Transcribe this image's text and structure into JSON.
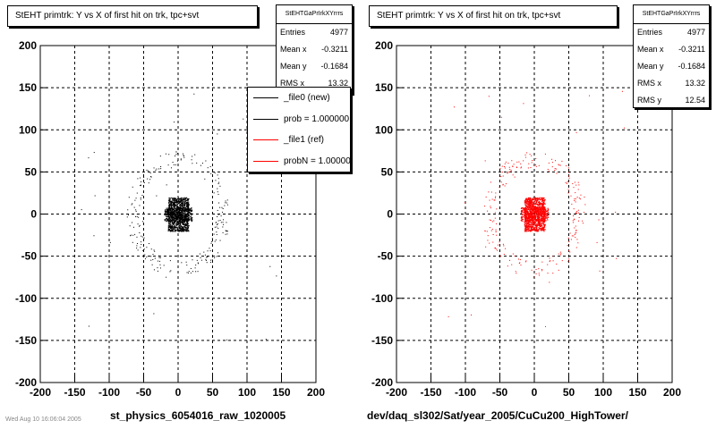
{
  "chart_data": [
    {
      "type": "scatter",
      "title": "StEHT primtrk: Y vs X of first hit on trk, tpc+svt",
      "xlim": [
        -200,
        200
      ],
      "ylim": [
        -200,
        200
      ],
      "xticks": [
        -200,
        -150,
        -100,
        -50,
        0,
        50,
        100,
        150,
        200
      ],
      "yticks": [
        -200,
        -150,
        -100,
        -50,
        0,
        50,
        100,
        150,
        200
      ],
      "grid": true,
      "xlabel": "st_physics_6054016_raw_1020005",
      "marker_color": "#000000",
      "stats": {
        "title": "StEHTGaPrIrkXYrrrs",
        "entries": [
          {
            "label": "Entries",
            "value": "4977"
          },
          {
            "label": "Mean x",
            "value": "-0.3211"
          },
          {
            "label": "Mean y",
            "value": "-0.1684"
          },
          {
            "label": "RMS x",
            "value": "13.32"
          }
        ]
      },
      "legend": {
        "placement": "top-right",
        "entries": [
          {
            "label": "_file0 (new)",
            "color": "#000000"
          },
          {
            "label": "prob = 1.000000",
            "color": "#000000"
          },
          {
            "label": "_file1 (ref)",
            "color": "#ff0000"
          },
          {
            "label": "probN = 1.000000",
            "color": "#ff0000"
          }
        ]
      },
      "core": {
        "center": [
          0,
          0
        ],
        "halfwidth": 15,
        "halfheight": 20
      },
      "ring": {
        "center": [
          0,
          0
        ],
        "radius_min": 55,
        "radius_max": 75
      }
    },
    {
      "type": "scatter",
      "title": "StEHT primtrk: Y vs X of first hit on trk, tpc+svt",
      "xlim": [
        -200,
        200
      ],
      "ylim": [
        -200,
        200
      ],
      "xticks": [
        -200,
        -150,
        -100,
        -50,
        0,
        50,
        100,
        150,
        200
      ],
      "yticks": [
        -200,
        -150,
        -100,
        -50,
        0,
        50,
        100,
        150,
        200
      ],
      "grid": true,
      "xlabel": "dev/daq_sl302/Sat/year_2005/CuCu200_HighTower/",
      "marker_color": "#ff0000",
      "stats": {
        "title": "StEHTGaPrIrkXYrrrs",
        "entries": [
          {
            "label": "Entries",
            "value": "4977"
          },
          {
            "label": "Mean x",
            "value": "-0.3211"
          },
          {
            "label": "Mean y",
            "value": "-0.1684"
          },
          {
            "label": "RMS x",
            "value": "13.32"
          },
          {
            "label": "RMS y",
            "value": "12.54"
          }
        ]
      },
      "core": {
        "center": [
          0,
          0
        ],
        "halfwidth": 15,
        "halfheight": 20
      },
      "ring": {
        "center": [
          0,
          0
        ],
        "radius_min": 55,
        "radius_max": 75
      }
    }
  ],
  "footnote": "Wed Aug 10 16:06:04 2005"
}
